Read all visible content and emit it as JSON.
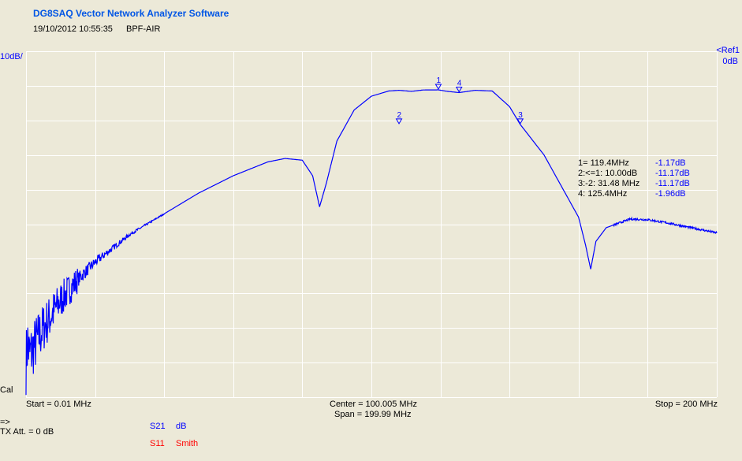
{
  "header": {
    "app_title": "DG8SAQ Vector Network Analyzer Software",
    "datetime": "19/10/2012   10:55:35",
    "dataset": "BPF-AIR",
    "title_color": "#0055e5"
  },
  "plot": {
    "scale_label": "10dB/",
    "ref_label": "<Ref1",
    "ref_value": "0dB",
    "cal_label": "Cal",
    "start_label": "Start = 0.01 MHz",
    "center_label": "Center = 100.005 MHz",
    "span_label": "Span = 199.99 MHz",
    "stop_label": "Stop = 200 MHz",
    "grid_color": "#ffffff",
    "trace_color": "#0000ff"
  },
  "markers": [
    {
      "id": "1",
      "label": "1=  119.4MHz",
      "value": "-1.17dB"
    },
    {
      "id": "2",
      "label": "2:<=1:  10.00dB",
      "value": "-11.17dB"
    },
    {
      "id": "3",
      "label": "3:-2:  31.48 MHz",
      "value": "-11.17dB"
    },
    {
      "id": "4",
      "label": "4:  125.4MHz",
      "value": "-1.96dB"
    }
  ],
  "footer": {
    "arrow": "=>",
    "tx_att": "TX Att.  = 0 dB",
    "traces": [
      {
        "name": "S21",
        "format": "dB",
        "color": "#0000ff"
      },
      {
        "name": "S11",
        "format": "Smith",
        "color": "#ff0000"
      }
    ]
  },
  "chart_data": {
    "type": "line",
    "xlabel": "",
    "ylabel": "",
    "xlim": [
      0.01,
      200
    ],
    "ylim": [
      -90,
      10
    ],
    "x_unit": "MHz",
    "y_unit": "dB",
    "series": [
      {
        "name": "S21",
        "x": [
          0.01,
          0.5,
          1,
          2,
          5,
          10,
          15,
          20,
          30,
          40,
          50,
          60,
          70,
          75,
          80,
          83,
          85,
          87,
          90,
          95,
          100,
          105,
          108,
          111.6,
          115,
          119.4,
          122,
          125.4,
          130,
          135,
          140,
          143.1,
          150,
          155,
          160,
          162,
          163.5,
          165,
          168,
          175,
          180,
          185,
          190,
          200
        ],
        "y": [
          -80,
          -74,
          -78,
          -76,
          -70,
          -62,
          -56,
          -51,
          -43,
          -37,
          -31,
          -26,
          -22,
          -21,
          -21.5,
          -26,
          -35,
          -28,
          -16,
          -7,
          -3,
          -1.5,
          -1.3,
          -1.6,
          -1.2,
          -1.17,
          -1.6,
          -1.96,
          -1.3,
          -1.5,
          -6,
          -11.17,
          -20,
          -29,
          -38,
          -46,
          -53,
          -45,
          -41,
          -38.5,
          -38.7,
          -39.5,
          -40.5,
          -42.5
        ]
      }
    ]
  }
}
